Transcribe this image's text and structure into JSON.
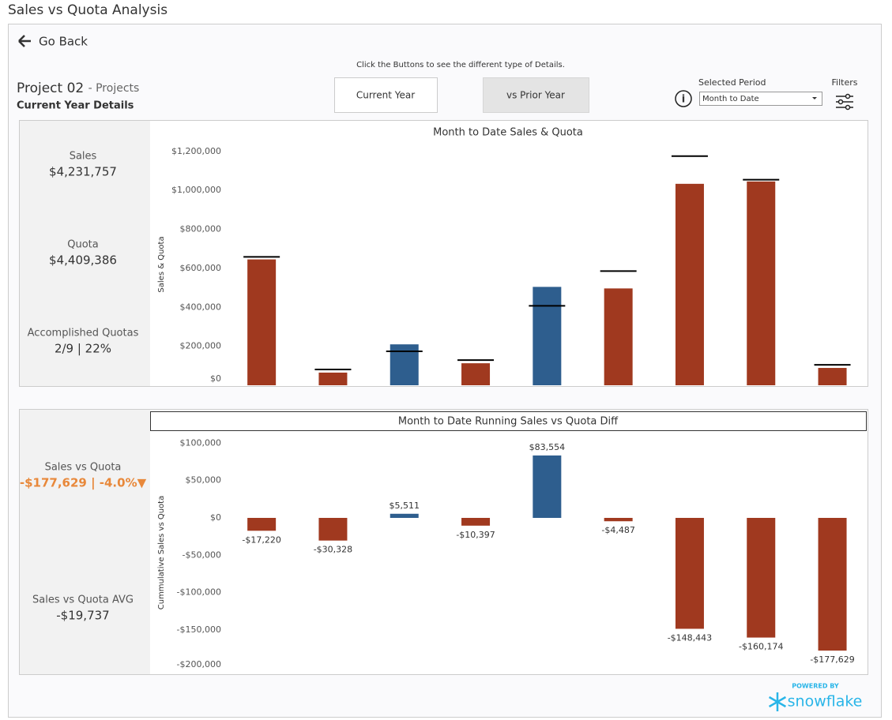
{
  "title": "Sales vs Quota Analysis",
  "nav": {
    "back": "Go Back"
  },
  "hint": "Click the Buttons to see the different type of Details.",
  "project": {
    "name": "Project 02",
    "type": "- Projects",
    "subtitle": "Current Year Details"
  },
  "buttons": [
    "Current Year",
    "vs Prior Year"
  ],
  "period": {
    "label": "Selected Period",
    "value": "Month to Date"
  },
  "filters": "Filters",
  "kpis": [
    {
      "label": "Sales",
      "value": "$4,231,757"
    },
    {
      "label": "Quota",
      "value": "$4,409,386"
    },
    {
      "label": "Accomplished Quotas",
      "value": "2/9 | 22%"
    }
  ],
  "diff_kpis": [
    {
      "label": "Sales vs Quota",
      "value": "-$177,629 | -4.0%▼"
    },
    {
      "label": "Sales vs Quota AVG",
      "value": "-$19,737"
    }
  ],
  "footer": {
    "powered": "POWERED BY",
    "brand": "snowflake"
  },
  "chart_data": [
    {
      "type": "bar_target",
      "title": "Month to Date Sales & Quota",
      "ylabel": "Sales & Quota",
      "ylim": [
        0,
        1240000
      ],
      "yticks": [
        {
          "value": 0,
          "label": "$0"
        },
        {
          "value": 200000,
          "label": "$200,000"
        },
        {
          "value": 400000,
          "label": "$400,000"
        },
        {
          "value": 600000,
          "label": "$600,000"
        },
        {
          "value": 800000,
          "label": "$800,000"
        },
        {
          "value": 1000000,
          "label": "$1,000,000"
        },
        {
          "value": 1200000,
          "label": "$1,200,000"
        }
      ],
      "series": [
        {
          "colors": [
            "#a0391f",
            "#a0391f",
            "#2e5e8e",
            "#a0391f",
            "#2e5e8e",
            "#a0391f",
            "#a0391f",
            "#a0391f",
            "#a0391f"
          ],
          "values": [
            646000,
            65000,
            210000,
            113000,
            505000,
            497000,
            1034000,
            1046000,
            89000
          ]
        },
        {
          "color": "#000000",
          "values": [
            659000,
            81000,
            174000,
            129000,
            408000,
            586000,
            1176000,
            1055000,
            105000
          ]
        }
      ]
    },
    {
      "type": "bar",
      "title": "Month to Date Running Sales vs Quota Diff",
      "ylabel": "Cummulative Sales vs Quota",
      "ylim": [
        -205000,
        112000
      ],
      "yticks": [
        {
          "value": -200000,
          "label": "-$200,000"
        },
        {
          "value": -150000,
          "label": "-$150,000"
        },
        {
          "value": -100000,
          "label": "-$100,000"
        },
        {
          "value": -50000,
          "label": "-$50,000"
        },
        {
          "value": 0,
          "label": "$0"
        },
        {
          "value": 50000,
          "label": "$50,000"
        },
        {
          "value": 100000,
          "label": "$100,000"
        }
      ],
      "colors": [
        "#a0391f",
        "#a0391f",
        "#2e5e8e",
        "#a0391f",
        "#2e5e8e",
        "#a0391f",
        "#a0391f",
        "#a0391f",
        "#a0391f"
      ],
      "values": [
        -17220,
        -30328,
        5511,
        -10397,
        83554,
        -4487,
        -148443,
        -160174,
        -177629
      ],
      "value_labels": [
        "-$17,220",
        "-$30,328",
        "$5,511",
        "-$10,397",
        "$83,554",
        "-$4,487",
        "-$148,443",
        "-$160,174",
        "-$177,629"
      ]
    }
  ]
}
